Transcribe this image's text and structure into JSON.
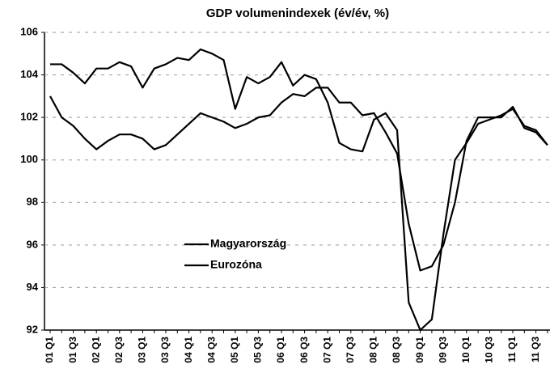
{
  "chart_data": {
    "type": "line",
    "title": "GDP volumenindexek (év/év, %)",
    "categories": [
      "01 Q1",
      null,
      "01 Q3",
      null,
      "02 Q1",
      null,
      "02 Q3",
      null,
      "03 Q1",
      null,
      "03 Q3",
      null,
      "04 Q1",
      null,
      "04 Q3",
      null,
      "05 Q1",
      null,
      "05 Q3",
      null,
      "06 Q1",
      null,
      "06 Q3",
      null,
      "07 Q1",
      null,
      "07 Q3",
      null,
      "08 Q1",
      null,
      "08 Q3",
      null,
      "09 Q1",
      null,
      "09 Q3",
      null,
      "10 Q1",
      null,
      "10 Q3",
      null,
      "11 Q1",
      null,
      "11 Q3",
      null
    ],
    "series": [
      {
        "name": "Magyarország",
        "color": "#000000",
        "values": [
          104.5,
          104.5,
          104.1,
          103.6,
          104.3,
          104.3,
          104.6,
          104.4,
          103.4,
          104.3,
          104.5,
          104.8,
          104.7,
          105.2,
          105.0,
          104.7,
          102.4,
          103.9,
          103.6,
          103.9,
          104.6,
          103.5,
          104.0,
          103.8,
          102.7,
          100.8,
          100.5,
          100.4,
          101.9,
          102.2,
          101.4,
          93.3,
          92.0,
          92.5,
          96.5,
          100.0,
          100.8,
          101.7,
          101.9,
          102.1,
          102.4,
          101.6,
          101.4,
          100.7
        ]
      },
      {
        "name": "Eurozóna",
        "color": "#000000",
        "values": [
          103.0,
          102.0,
          101.6,
          101.0,
          100.5,
          100.9,
          101.2,
          101.2,
          101.0,
          100.5,
          100.7,
          101.2,
          101.7,
          102.2,
          102.0,
          101.8,
          101.5,
          101.7,
          102.0,
          102.1,
          102.7,
          103.1,
          103.0,
          103.4,
          103.4,
          102.7,
          102.7,
          102.1,
          102.2,
          101.3,
          100.3,
          97.0,
          94.8,
          95.0,
          96.0,
          98.0,
          100.9,
          102.0,
          102.0,
          102.0,
          102.5,
          101.5,
          101.3,
          100.7
        ]
      }
    ],
    "ylim": [
      92,
      106
    ],
    "yticks": [
      92,
      94,
      96,
      98,
      100,
      102,
      104,
      106
    ],
    "grid": true,
    "legend": "center"
  }
}
